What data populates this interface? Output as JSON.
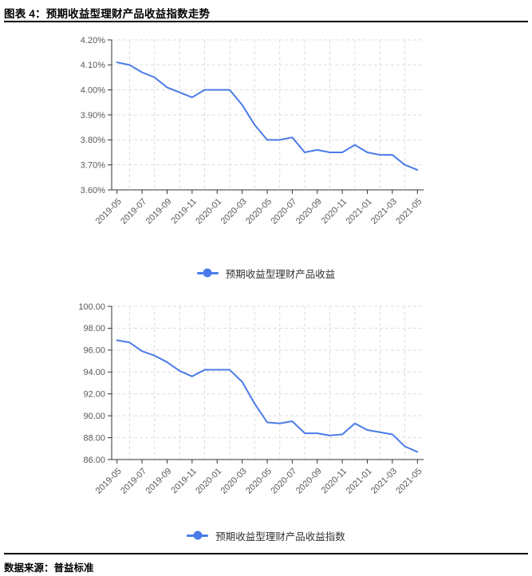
{
  "figure": {
    "title": "图表 4：预期收益型理财产品收益指数走势",
    "source": "数据来源：普益标准"
  },
  "colors": {
    "line": "#4a7be8",
    "grid": "#dddddd",
    "axis": "#333333",
    "tick_label": "#595959",
    "legend_text": "#333333"
  },
  "chart_data": [
    {
      "type": "line",
      "legend": "预期收益型理财产品收益",
      "legend_position": "bottom",
      "grid": true,
      "x_label_interval": 2,
      "x": [
        "2019-05",
        "2019-06",
        "2019-07",
        "2019-08",
        "2019-09",
        "2019-10",
        "2019-11",
        "2019-12",
        "2020-01",
        "2020-02",
        "2020-03",
        "2020-04",
        "2020-05",
        "2020-06",
        "2020-07",
        "2020-08",
        "2020-09",
        "2020-10",
        "2020-11",
        "2020-12",
        "2021-01",
        "2021-02",
        "2021-03",
        "2021-04",
        "2021-05"
      ],
      "values": [
        4.11,
        4.1,
        4.07,
        4.05,
        4.01,
        3.99,
        3.97,
        4.0,
        4.0,
        4.0,
        3.94,
        3.86,
        3.8,
        3.8,
        3.81,
        3.75,
        3.76,
        3.75,
        3.75,
        3.78,
        3.75,
        3.74,
        3.74,
        3.7,
        3.68
      ],
      "y_ticks": [
        "4.20%",
        "4.10%",
        "4.00%",
        "3.90%",
        "3.80%",
        "3.70%",
        "3.60%"
      ],
      "ylim": [
        3.6,
        4.2
      ]
    },
    {
      "type": "line",
      "legend": "预期收益型理财产品收益指数",
      "legend_position": "bottom",
      "grid": true,
      "x_label_interval": 2,
      "x": [
        "2019-05",
        "2019-06",
        "2019-07",
        "2019-08",
        "2019-09",
        "2019-10",
        "2019-11",
        "2019-12",
        "2020-01",
        "2020-02",
        "2020-03",
        "2020-04",
        "2020-05",
        "2020-06",
        "2020-07",
        "2020-08",
        "2020-09",
        "2020-10",
        "2020-11",
        "2020-12",
        "2021-01",
        "2021-02",
        "2021-03",
        "2021-04",
        "2021-05"
      ],
      "values": [
        96.9,
        96.7,
        95.9,
        95.5,
        94.9,
        94.1,
        93.6,
        94.2,
        94.2,
        94.2,
        93.1,
        91.1,
        89.4,
        89.3,
        89.5,
        88.4,
        88.4,
        88.2,
        88.3,
        89.3,
        88.7,
        88.5,
        88.3,
        87.2,
        86.7
      ],
      "y_ticks": [
        "100.00",
        "98.00",
        "96.00",
        "94.00",
        "92.00",
        "90.00",
        "88.00",
        "86.00"
      ],
      "ylim": [
        86.0,
        100.0
      ]
    }
  ]
}
